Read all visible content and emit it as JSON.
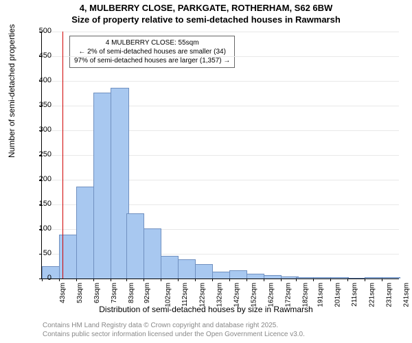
{
  "title_line1": "4, MULBERRY CLOSE, PARKGATE, ROTHERHAM, S62 6BW",
  "title_line2": "Size of property relative to semi-detached houses in Rawmarsh",
  "ylabel": "Number of semi-detached properties",
  "xlabel": "Distribution of semi-detached houses by size in Rawmarsh",
  "credit1": "Contains HM Land Registry data © Crown copyright and database right 2025.",
  "credit2": "Contains public sector information licensed under the Open Government Licence v3.0.",
  "annot_line1": "4 MULBERRY CLOSE: 55sqm",
  "annot_line2": "← 2% of semi-detached houses are smaller (34)",
  "annot_line3": "97% of semi-detached houses are larger (1,357) →",
  "chart": {
    "type": "histogram",
    "ymax": 500,
    "ytick_step": 50,
    "bar_color": "#a8c8f0",
    "bar_border": "#7090c0",
    "grid_color": "#e8e8e8",
    "marker_color": "#d00000",
    "marker_x": 55,
    "bars": [
      {
        "x": 43,
        "v": 23
      },
      {
        "x": 53,
        "v": 87
      },
      {
        "x": 63,
        "v": 185
      },
      {
        "x": 73,
        "v": 375
      },
      {
        "x": 83,
        "v": 385
      },
      {
        "x": 92,
        "v": 130
      },
      {
        "x": 102,
        "v": 100
      },
      {
        "x": 112,
        "v": 44
      },
      {
        "x": 122,
        "v": 38
      },
      {
        "x": 132,
        "v": 28
      },
      {
        "x": 142,
        "v": 12
      },
      {
        "x": 152,
        "v": 15
      },
      {
        "x": 162,
        "v": 8
      },
      {
        "x": 172,
        "v": 5
      },
      {
        "x": 182,
        "v": 3
      },
      {
        "x": 191,
        "v": 2
      },
      {
        "x": 201,
        "v": 2
      },
      {
        "x": 211,
        "v": 2
      },
      {
        "x": 221,
        "v": 0
      },
      {
        "x": 231,
        "v": 1
      },
      {
        "x": 241,
        "v": 1
      }
    ],
    "xticks": [
      43,
      53,
      63,
      73,
      83,
      92,
      102,
      112,
      122,
      132,
      142,
      152,
      162,
      172,
      182,
      191,
      201,
      211,
      221,
      231,
      241
    ],
    "xtick_suffix": "sqm"
  }
}
